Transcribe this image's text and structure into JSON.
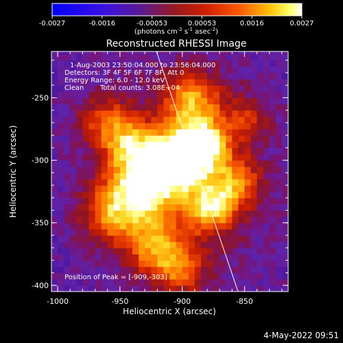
{
  "colorbar": {
    "ticks": [
      "-0.0027",
      "-0.0016",
      "-0.00053",
      "0.00053",
      "0.0016",
      "0.0027"
    ],
    "unit_parts": [
      "(photons cm",
      "-2",
      " s",
      "-1",
      " asec",
      "-2",
      ")"
    ]
  },
  "plot": {
    "title": "Reconstructed RHESSI Image",
    "xlabel": "Heliocentric X (arcsec)",
    "ylabel": "Heliocentric Y (arcsec)",
    "x_ticks": [
      "-1000",
      "-950",
      "-900",
      "-850"
    ],
    "y_ticks": [
      "-250",
      "-300",
      "-350",
      "-400"
    ]
  },
  "annotations": {
    "time_range": "1-Aug-2003 23:50:04.000 to 23:56:04.000",
    "detectors": "Detectors: 3F 4F 5F 6F 7F 8F, Att 0",
    "energy": "Energy Range: 6.0 - 12.0 keV",
    "clean": "Clean",
    "counts": "Total counts: 3.08E+04",
    "peak": "Position of Peak = [-909,-303]"
  },
  "footer": {
    "date": "4-May-2022 09:51"
  },
  "chart_data": {
    "type": "heatmap",
    "title": "Reconstructed RHESSI Image",
    "xlabel": "Heliocentric X (arcsec)",
    "ylabel": "Heliocentric Y (arcsec)",
    "xlim": [
      -1005,
      -815
    ],
    "ylim": [
      -405,
      -213
    ],
    "colorbar_range": [
      -0.0027,
      0.0027
    ],
    "peak_position": [
      -909,
      -303
    ],
    "limb_line": [
      [
        -920,
        -213
      ],
      [
        -847,
        -405
      ]
    ],
    "colors": [
      "#0000ff",
      "#5a1a96",
      "#9a1a1a",
      "#ff5a00",
      "#ffff66",
      "#ffffff"
    ]
  }
}
